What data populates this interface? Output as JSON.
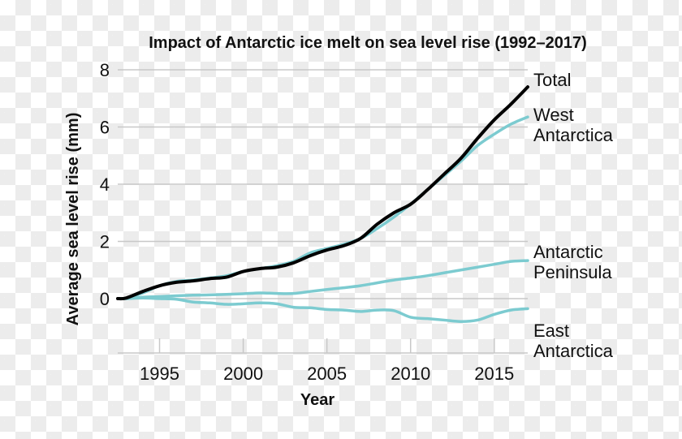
{
  "chart_data": {
    "type": "line",
    "title": "Impact of Antarctic ice melt on sea level rise (1992–2017)",
    "xlabel": "Year",
    "ylabel": "Average sea level rise (mm)",
    "xlim": [
      1992.5,
      2017
    ],
    "ylim": [
      -1.9,
      8
    ],
    "x_ticks": [
      1995,
      2000,
      2005,
      2010,
      2015
    ],
    "y_ticks": [
      0,
      2,
      4,
      6,
      8
    ],
    "grid": "horizontal",
    "legend": "direct labels at right",
    "x": [
      1992.5,
      1993,
      1994,
      1995,
      1996,
      1997,
      1998,
      1999,
      2000,
      2001,
      2002,
      2003,
      2004,
      2005,
      2006,
      2007,
      2008,
      2009,
      2010,
      2011,
      2012,
      2013,
      2014,
      2015,
      2016,
      2017
    ],
    "series": [
      {
        "name": "Total",
        "color": "#000000",
        "values": [
          0,
          0.02,
          0.25,
          0.45,
          0.57,
          0.62,
          0.7,
          0.75,
          0.95,
          1.05,
          1.1,
          1.25,
          1.5,
          1.7,
          1.85,
          2.1,
          2.6,
          3.0,
          3.3,
          3.8,
          4.35,
          4.9,
          5.6,
          6.25,
          6.8,
          7.4
        ]
      },
      {
        "name": "West Antarctica",
        "label_lines": [
          "West",
          "Antarctica"
        ],
        "color": "#7ccbd0",
        "values": [
          0,
          0.02,
          0.2,
          0.45,
          0.6,
          0.65,
          0.72,
          0.8,
          0.95,
          1.05,
          1.15,
          1.3,
          1.6,
          1.75,
          1.9,
          2.1,
          2.45,
          2.85,
          3.3,
          3.8,
          4.3,
          4.8,
          5.35,
          5.75,
          6.1,
          6.35
        ]
      },
      {
        "name": "Antarctic Peninsula",
        "label_lines": [
          "Antarctic",
          "Peninsula"
        ],
        "color": "#7ccbd0",
        "values": [
          0,
          0,
          0.05,
          0.07,
          0.1,
          0.12,
          0.13,
          0.15,
          0.17,
          0.2,
          0.18,
          0.18,
          0.25,
          0.32,
          0.38,
          0.45,
          0.55,
          0.65,
          0.72,
          0.8,
          0.9,
          1.0,
          1.1,
          1.2,
          1.3,
          1.33
        ]
      },
      {
        "name": "East Antarctica",
        "label_lines": [
          "East",
          "Antarctica"
        ],
        "color": "#7ccbd0",
        "values": [
          0,
          0,
          0.02,
          0,
          -0.02,
          -0.12,
          -0.15,
          -0.2,
          -0.18,
          -0.15,
          -0.18,
          -0.3,
          -0.32,
          -0.38,
          -0.4,
          -0.45,
          -0.4,
          -0.42,
          -0.65,
          -0.7,
          -0.75,
          -0.8,
          -0.75,
          -0.55,
          -0.4,
          -0.35
        ]
      }
    ]
  }
}
